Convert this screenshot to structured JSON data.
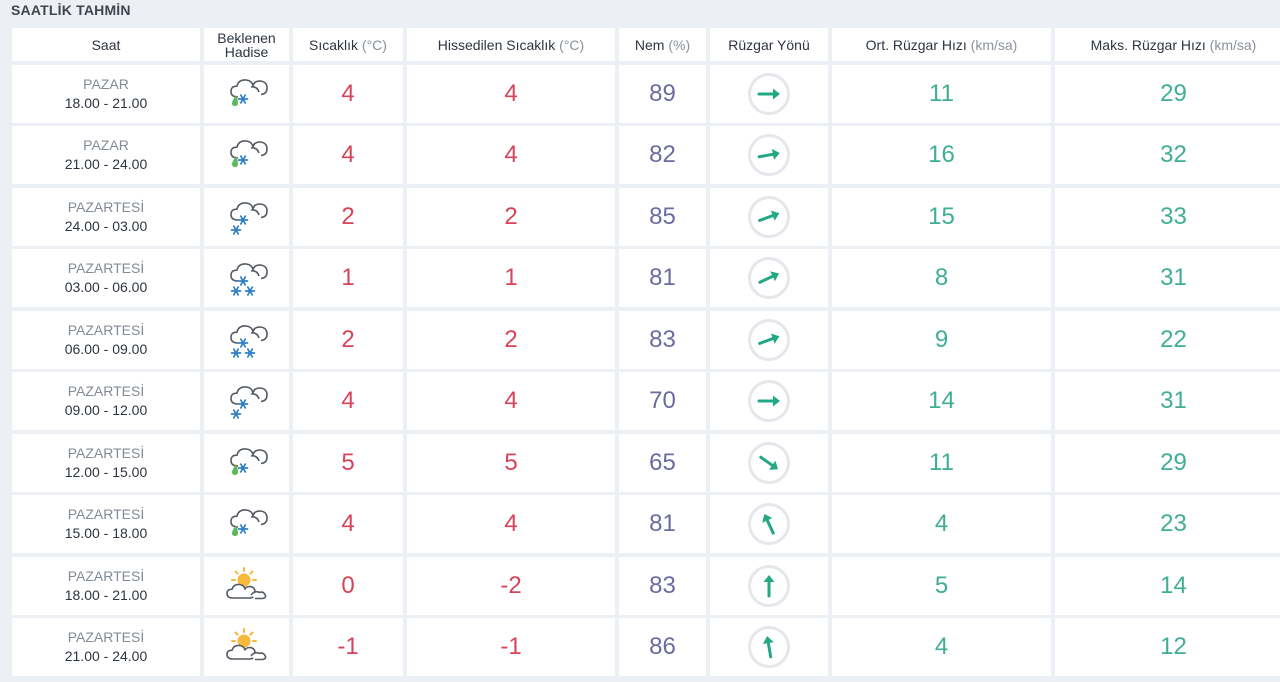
{
  "section_title": "SAATLİK TAHMİN",
  "headers": {
    "saat": "Saat",
    "hadise_line1": "Beklenen",
    "hadise_line2": "Hadise",
    "sicaklik": "Sıcaklık",
    "sicaklik_unit": "(°C)",
    "hissedilen": "Hissedilen Sıcaklık",
    "hissedilen_unit": "(°C)",
    "nem": "Nem",
    "nem_unit": "(%)",
    "ruzgar_yonu": "Rüzgar Yönü",
    "ort_ruzgar": "Ort. Rüzgar Hızı",
    "ort_ruzgar_unit": "(km/sa)",
    "maks_ruzgar": "Maks. Rüzgar Hızı",
    "maks_ruzgar_unit": "(km/sa)"
  },
  "colors": {
    "temperature": "#d9435a",
    "humidity": "#6b6ba0",
    "wind": "#3fae95",
    "background": "#eceff3"
  },
  "rows": [
    {
      "day": "PAZAR",
      "time": "18.00 - 21.00",
      "icon": "cloud-rain-snow-icon",
      "temp": "4",
      "feels": "4",
      "humidity": "89",
      "wind_dir_deg": 90,
      "wind_avg": "11",
      "wind_max": "29"
    },
    {
      "day": "PAZAR",
      "time": "21.00 - 24.00",
      "icon": "cloud-rain-snow-icon",
      "temp": "4",
      "feels": "4",
      "humidity": "82",
      "wind_dir_deg": 80,
      "wind_avg": "16",
      "wind_max": "32"
    },
    {
      "day": "PAZARTESİ",
      "time": "24.00 - 03.00",
      "icon": "cloud-snow-icon",
      "temp": "2",
      "feels": "2",
      "humidity": "85",
      "wind_dir_deg": 70,
      "wind_avg": "15",
      "wind_max": "33"
    },
    {
      "day": "PAZARTESİ",
      "time": "03.00 - 06.00",
      "icon": "cloud-heavy-snow-icon",
      "temp": "1",
      "feels": "1",
      "humidity": "81",
      "wind_dir_deg": 65,
      "wind_avg": "8",
      "wind_max": "31"
    },
    {
      "day": "PAZARTESİ",
      "time": "06.00 - 09.00",
      "icon": "cloud-heavy-snow-icon",
      "temp": "2",
      "feels": "2",
      "humidity": "83",
      "wind_dir_deg": 70,
      "wind_avg": "9",
      "wind_max": "22"
    },
    {
      "day": "PAZARTESİ",
      "time": "09.00 - 12.00",
      "icon": "cloud-snow-icon",
      "temp": "4",
      "feels": "4",
      "humidity": "70",
      "wind_dir_deg": 90,
      "wind_avg": "14",
      "wind_max": "31"
    },
    {
      "day": "PAZARTESİ",
      "time": "12.00 - 15.00",
      "icon": "cloud-rain-snow-icon",
      "temp": "5",
      "feels": "5",
      "humidity": "65",
      "wind_dir_deg": 125,
      "wind_avg": "11",
      "wind_max": "29"
    },
    {
      "day": "PAZARTESİ",
      "time": "15.00 - 18.00",
      "icon": "cloud-rain-snow-icon",
      "temp": "4",
      "feels": "4",
      "humidity": "81",
      "wind_dir_deg": 335,
      "wind_avg": "4",
      "wind_max": "23"
    },
    {
      "day": "PAZARTESİ",
      "time": "18.00 - 21.00",
      "icon": "partly-cloudy-icon",
      "temp": "0",
      "feels": "-2",
      "humidity": "83",
      "wind_dir_deg": 0,
      "wind_avg": "5",
      "wind_max": "14"
    },
    {
      "day": "PAZARTESİ",
      "time": "21.00 - 24.00",
      "icon": "partly-cloudy-icon",
      "temp": "-1",
      "feels": "-1",
      "humidity": "86",
      "wind_dir_deg": 350,
      "wind_avg": "4",
      "wind_max": "12"
    }
  ]
}
